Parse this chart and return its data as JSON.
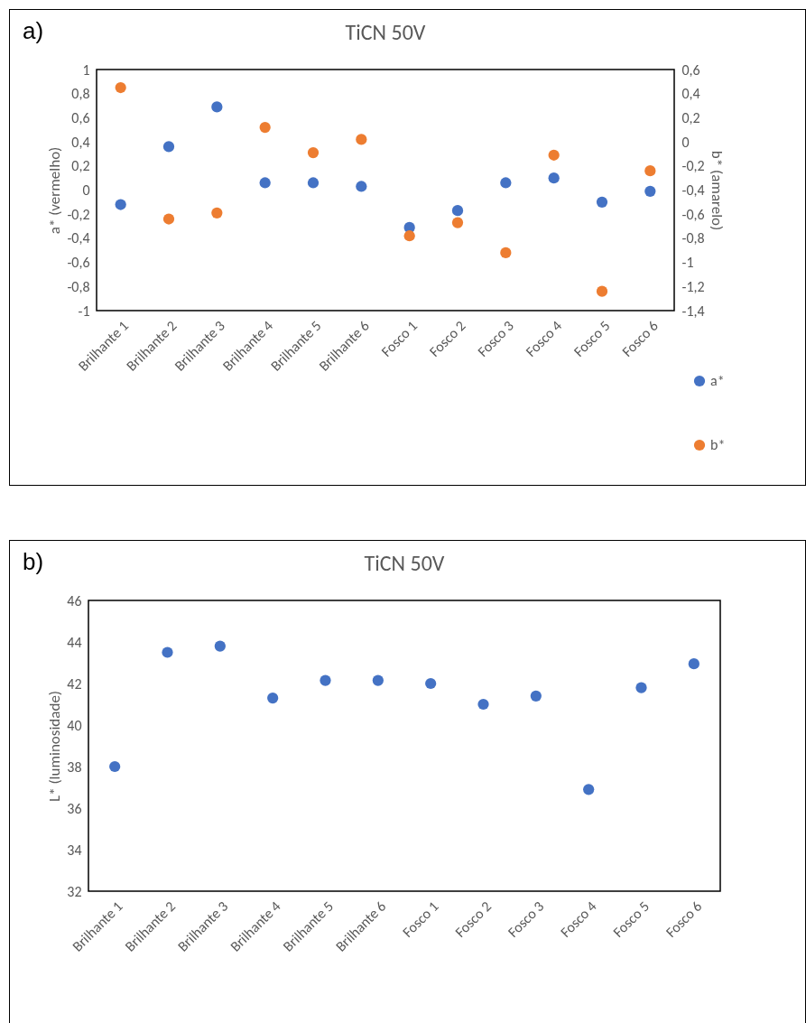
{
  "chart_data": [
    {
      "type": "scatter",
      "title": "TiCN 50V",
      "annotations": [
        "a)"
      ],
      "ylabel": "a* (vermelho)",
      "y2label": "b* (amarelo)",
      "marker": "circle",
      "legend": "bottom right",
      "categories": [
        "Brilhante 1",
        "Brilhante 2",
        "Brilhante 3",
        "Brilhante 4",
        "Brilhante 5",
        "Brilhante 6",
        "Fosco 1",
        "Fosco 2",
        "Fosco 3",
        "Fosco 4",
        "Fosco 5",
        "Fosco 6"
      ],
      "ylim": [
        -1,
        1
      ],
      "yticks": [
        {
          "value": -1,
          "label": "-1"
        },
        {
          "value": -0.8,
          "label": "-0,8"
        },
        {
          "value": -0.6,
          "label": "-0,6"
        },
        {
          "value": -0.4,
          "label": "-0,4"
        },
        {
          "value": -0.2,
          "label": "-0,2"
        },
        {
          "value": 0,
          "label": "0"
        },
        {
          "value": 0.2,
          "label": "0,2"
        },
        {
          "value": 0.4,
          "label": "0,4"
        },
        {
          "value": 0.6,
          "label": "0,6"
        },
        {
          "value": 0.8,
          "label": "0,8"
        },
        {
          "value": 1,
          "label": "1"
        }
      ],
      "y2lim": [
        -1.4,
        0.6
      ],
      "y2ticks": [
        {
          "value": -1.4,
          "label": "-1,4"
        },
        {
          "value": -1.2,
          "label": "-1,2"
        },
        {
          "value": -1,
          "label": "-1"
        },
        {
          "value": -0.8,
          "label": "-0,8"
        },
        {
          "value": -0.6,
          "label": "-0,6"
        },
        {
          "value": -0.4,
          "label": "-0,4"
        },
        {
          "value": -0.2,
          "label": "-0,2"
        },
        {
          "value": 0,
          "label": "0"
        },
        {
          "value": 0.2,
          "label": "0,2"
        },
        {
          "value": 0.4,
          "label": "0,4"
        },
        {
          "value": 0.6,
          "label": "0,6"
        }
      ],
      "series": [
        {
          "name": "a*",
          "color": "#4472c4",
          "values": [
            -0.12,
            0.36,
            0.69,
            0.06,
            0.06,
            0.03,
            -0.31,
            -0.17,
            0.06,
            0.1,
            -0.1,
            -0.01
          ]
        },
        {
          "name": "b*",
          "color": "#ed7d31",
          "axis": "y2",
          "values": [
            0.45,
            -0.64,
            -0.59,
            0.12,
            -0.09,
            0.02,
            -0.78,
            -0.67,
            -0.92,
            -0.11,
            -1.24,
            -0.24
          ]
        }
      ]
    },
    {
      "type": "scatter",
      "title": "TiCN 50V",
      "annotations": [
        "b)"
      ],
      "ylabel": "L* (luminosidade)",
      "marker": "circle",
      "categories": [
        "Brilhante 1",
        "Brilhante 2",
        "Brilhante 3",
        "Brilhante 4",
        "Brilhante 5",
        "Brilhante 6",
        "Fosco 1",
        "Fosco 2",
        "Fosco 3",
        "Fosco 4",
        "Fosco 5",
        "Fosco 6"
      ],
      "ylim": [
        32,
        46
      ],
      "yticks": [
        32,
        34,
        36,
        38,
        40,
        42,
        44,
        46
      ],
      "series": [
        {
          "color": "#4472c4",
          "values": [
            38.0,
            43.5,
            43.8,
            41.3,
            42.15,
            42.15,
            42.0,
            41.0,
            41.4,
            36.9,
            41.8,
            42.95
          ]
        }
      ]
    }
  ]
}
